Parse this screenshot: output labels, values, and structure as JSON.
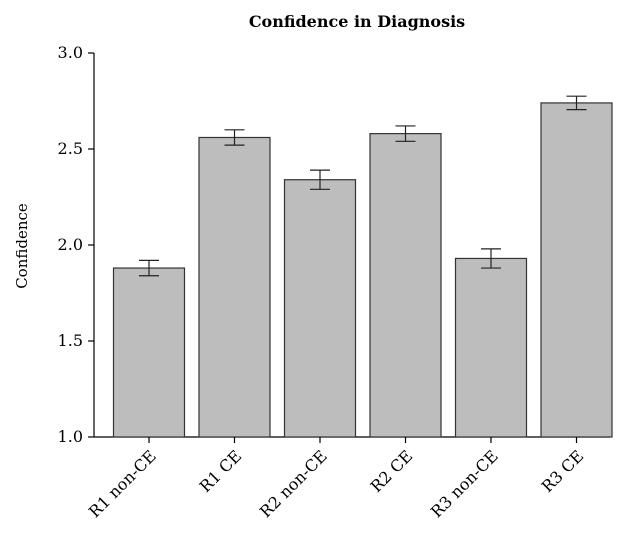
{
  "chart_data": {
    "type": "bar",
    "title": "Confidence in Diagnosis",
    "xlabel": "",
    "ylabel": "Confidence",
    "ylim": [
      1.0,
      3.0
    ],
    "yticks": [
      "1.0",
      "1.5",
      "2.0",
      "2.5",
      "3.0"
    ],
    "categories": [
      "R1 non-CE",
      "R1 CE",
      "R2 non-CE",
      "R2 CE",
      "R3 non-CE",
      "R3 CE"
    ],
    "values": [
      1.88,
      2.56,
      2.34,
      2.58,
      1.93,
      2.74
    ],
    "error": [
      0.04,
      0.04,
      0.05,
      0.04,
      0.05,
      0.035
    ],
    "grid": false,
    "bar_color": "#bdbdbd"
  }
}
